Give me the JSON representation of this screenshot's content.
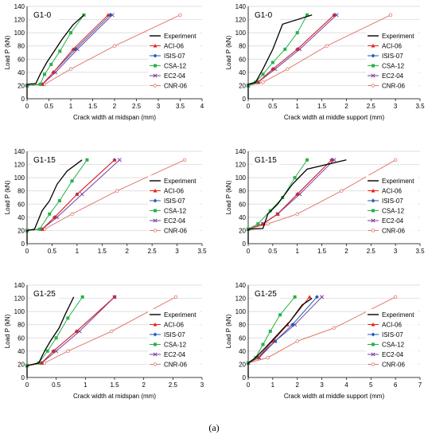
{
  "caption": "(a)",
  "colors": {
    "Experiment": "#000000",
    "ACI-06": "#e8211c",
    "ISIS-07": "#1f5fb4",
    "CSA-12": "#27b24a",
    "EC2-04": "#7b3fa0",
    "CNR-06": "#e07a6e"
  },
  "legend_order": [
    "Experiment",
    "ACI-06",
    "ISIS-07",
    "CSA-12",
    "EC2-04",
    "CNR-06"
  ],
  "chart_data": [
    {
      "type": "line",
      "title": "G1-0",
      "xlabel": "Crack width at midspan (mm)",
      "ylabel": "Load P (kN)",
      "xlim": [
        0,
        4
      ],
      "ylim": [
        0,
        140
      ],
      "xticks": [
        0,
        0.5,
        1,
        1.5,
        2,
        2.5,
        3,
        3.5,
        4
      ],
      "yticks": [
        0,
        20,
        40,
        60,
        80,
        100,
        120,
        140
      ],
      "legend": "top-right",
      "series": [
        {
          "name": "Experiment",
          "x": [
            0,
            0,
            0.2,
            0.3,
            0.45,
            0.6,
            0.8,
            1.05,
            1.3
          ],
          "y": [
            0,
            22,
            23,
            37,
            55,
            70,
            90,
            112,
            127
          ]
        },
        {
          "name": "ACI-06",
          "x": [
            0,
            0,
            0.35,
            0.6,
            1.05,
            1.85
          ],
          "y": [
            0,
            20,
            22,
            40,
            75,
            127
          ]
        },
        {
          "name": "ISIS-07",
          "x": [
            0,
            0,
            0.35,
            0.6,
            1.1,
            1.9
          ],
          "y": [
            0,
            20,
            22,
            40,
            75,
            127
          ]
        },
        {
          "name": "CSA-12",
          "x": [
            0,
            0,
            0.3,
            0.4,
            0.55,
            0.75,
            1.0,
            1.3
          ],
          "y": [
            0,
            20,
            22,
            37,
            52,
            72,
            100,
            127
          ]
        },
        {
          "name": "EC2-04",
          "x": [
            0,
            0,
            0.35,
            0.65,
            1.15,
            1.95
          ],
          "y": [
            0,
            20,
            22,
            40,
            75,
            127
          ]
        },
        {
          "name": "CNR-06",
          "x": [
            0,
            0,
            0.4,
            1.0,
            2.0,
            3.5
          ],
          "y": [
            0,
            20,
            22,
            45,
            80,
            127
          ]
        }
      ]
    },
    {
      "type": "line",
      "title": "G1-0",
      "xlabel": "Crack width at middle support (mm)",
      "ylabel": "Load P (kN)",
      "xlim": [
        0,
        3.5
      ],
      "ylim": [
        0,
        140
      ],
      "xticks": [
        0,
        0.5,
        1,
        1.5,
        2,
        2.5,
        3,
        3.5
      ],
      "yticks": [
        0,
        20,
        40,
        60,
        80,
        100,
        120,
        140
      ],
      "legend": "top-right",
      "series": [
        {
          "name": "Experiment",
          "x": [
            0,
            0,
            0.15,
            0.3,
            0.5,
            0.7,
            1.3
          ],
          "y": [
            0,
            22,
            25,
            45,
            75,
            113,
            127
          ]
        },
        {
          "name": "ACI-06",
          "x": [
            0,
            0,
            0.2,
            0.5,
            1.0,
            1.75
          ],
          "y": [
            0,
            20,
            25,
            45,
            75,
            127
          ]
        },
        {
          "name": "ISIS-07",
          "x": [
            0,
            0,
            0.2,
            0.5,
            1.0,
            1.75
          ],
          "y": [
            0,
            20,
            25,
            45,
            75,
            127
          ]
        },
        {
          "name": "CSA-12",
          "x": [
            0,
            0,
            0.15,
            0.3,
            0.5,
            0.75,
            1.0,
            1.2
          ],
          "y": [
            0,
            20,
            25,
            37,
            55,
            75,
            100,
            127
          ]
        },
        {
          "name": "EC2-04",
          "x": [
            0,
            0,
            0.2,
            0.55,
            1.05,
            1.8
          ],
          "y": [
            0,
            20,
            25,
            45,
            75,
            127
          ]
        },
        {
          "name": "CNR-06",
          "x": [
            0,
            0,
            0.3,
            0.8,
            1.6,
            2.9
          ],
          "y": [
            0,
            20,
            25,
            45,
            80,
            127
          ]
        }
      ]
    },
    {
      "type": "line",
      "title": "G1-15",
      "xlabel": "",
      "ylabel": "Load P (kN)",
      "xlim": [
        0,
        3.5
      ],
      "ylim": [
        0,
        140
      ],
      "xticks": [
        0,
        0.5,
        1,
        1.5,
        2,
        2.5,
        3,
        3.5
      ],
      "yticks": [
        0,
        20,
        40,
        60,
        80,
        100,
        120,
        140
      ],
      "legend": "top-right",
      "series": [
        {
          "name": "Experiment",
          "x": [
            0,
            0,
            0.15,
            0.3,
            0.45,
            0.6,
            0.8,
            1.1
          ],
          "y": [
            0,
            20,
            22,
            50,
            65,
            90,
            110,
            127
          ]
        },
        {
          "name": "ACI-06",
          "x": [
            0,
            0,
            0.3,
            0.55,
            1.0,
            1.75
          ],
          "y": [
            0,
            20,
            22,
            40,
            75,
            127
          ]
        },
        {
          "name": "ISIS-07",
          "x": [
            0,
            0,
            0.3,
            0.55,
            1.0,
            1.75
          ],
          "y": [
            0,
            20,
            22,
            40,
            75,
            127
          ]
        },
        {
          "name": "CSA-12",
          "x": [
            0,
            0,
            0.25,
            0.45,
            0.65,
            0.9,
            1.2
          ],
          "y": [
            0,
            20,
            22,
            45,
            65,
            95,
            127
          ]
        },
        {
          "name": "EC2-04",
          "x": [
            0,
            0,
            0.3,
            0.6,
            1.1,
            1.85
          ],
          "y": [
            0,
            20,
            22,
            40,
            75,
            127
          ]
        },
        {
          "name": "CNR-06",
          "x": [
            0,
            0,
            0.35,
            0.9,
            1.8,
            3.15
          ],
          "y": [
            0,
            20,
            22,
            45,
            80,
            127
          ]
        }
      ]
    },
    {
      "type": "line",
      "title": "G1-15",
      "xlabel": "",
      "ylabel": "Load P (kN)",
      "xlim": [
        0,
        3.5
      ],
      "ylim": [
        0,
        140
      ],
      "xticks": [
        0,
        0.5,
        1,
        1.5,
        2,
        2.5,
        3,
        3.5
      ],
      "yticks": [
        0,
        20,
        40,
        60,
        80,
        100,
        120,
        140
      ],
      "legend": "top-right",
      "series": [
        {
          "name": "Experiment",
          "x": [
            0,
            0,
            0.3,
            0.4,
            0.6,
            0.9,
            1.2,
            2.0
          ],
          "y": [
            0,
            22,
            23,
            45,
            60,
            90,
            113,
            127
          ]
        },
        {
          "name": "ACI-06",
          "x": [
            0,
            0,
            0.3,
            0.6,
            1.0,
            1.7
          ],
          "y": [
            0,
            22,
            30,
            45,
            75,
            127
          ]
        },
        {
          "name": "ISIS-07",
          "x": [
            0,
            0,
            0.3,
            0.6,
            1.0,
            1.7
          ],
          "y": [
            0,
            22,
            30,
            45,
            75,
            127
          ]
        },
        {
          "name": "CSA-12",
          "x": [
            0,
            0,
            0.2,
            0.45,
            0.7,
            0.95,
            1.2
          ],
          "y": [
            0,
            22,
            30,
            50,
            70,
            100,
            127
          ]
        },
        {
          "name": "EC2-04",
          "x": [
            0,
            0,
            0.3,
            0.6,
            1.05,
            1.75
          ],
          "y": [
            0,
            22,
            30,
            45,
            75,
            127
          ]
        },
        {
          "name": "CNR-06",
          "x": [
            0,
            0,
            0.4,
            1.0,
            1.9,
            3.0
          ],
          "y": [
            0,
            22,
            30,
            45,
            80,
            127
          ]
        }
      ]
    },
    {
      "type": "line",
      "title": "G1-25",
      "xlabel": "Crack width at midspan (mm)",
      "ylabel": "Load P (kN)",
      "xlim": [
        0,
        3
      ],
      "ylim": [
        0,
        140
      ],
      "xticks": [
        0,
        0.5,
        1,
        1.5,
        2,
        2.5,
        3
      ],
      "yticks": [
        0,
        20,
        40,
        60,
        80,
        100,
        120,
        140
      ],
      "legend": "top-right",
      "series": [
        {
          "name": "Experiment",
          "x": [
            0,
            0,
            0.2,
            0.3,
            0.4,
            0.55,
            0.65,
            0.8
          ],
          "y": [
            0,
            18,
            22,
            40,
            55,
            75,
            95,
            122
          ]
        },
        {
          "name": "ACI-06",
          "x": [
            0,
            0,
            0.25,
            0.45,
            0.85,
            1.5
          ],
          "y": [
            0,
            18,
            22,
            40,
            70,
            122
          ]
        },
        {
          "name": "ISIS-07",
          "x": [
            0,
            0,
            0.25,
            0.45,
            0.85,
            1.5
          ],
          "y": [
            0,
            18,
            22,
            40,
            70,
            122
          ]
        },
        {
          "name": "CSA-12",
          "x": [
            0,
            0,
            0.2,
            0.35,
            0.5,
            0.7,
            0.95
          ],
          "y": [
            0,
            18,
            22,
            40,
            60,
            90,
            122
          ]
        },
        {
          "name": "EC2-04",
          "x": [
            0,
            0,
            0.25,
            0.5,
            0.9,
            1.5
          ],
          "y": [
            0,
            18,
            22,
            40,
            70,
            122
          ]
        },
        {
          "name": "CNR-06",
          "x": [
            0,
            0,
            0.3,
            0.7,
            1.45,
            2.55
          ],
          "y": [
            0,
            18,
            22,
            40,
            70,
            122
          ]
        }
      ]
    },
    {
      "type": "line",
      "title": "G1-25",
      "xlabel": "Crack width at middle support (mm)",
      "ylabel": "Load P (kN)",
      "xlim": [
        0,
        7
      ],
      "ylim": [
        0,
        140
      ],
      "xticks": [
        0,
        1,
        2,
        3,
        4,
        5,
        6,
        7
      ],
      "yticks": [
        0,
        20,
        40,
        60,
        80,
        100,
        120,
        140
      ],
      "legend": "top-right",
      "series": [
        {
          "name": "Experiment",
          "x": [
            0,
            0,
            0.3,
            0.7,
            1.2,
            1.7,
            2.2,
            2.6
          ],
          "y": [
            0,
            22,
            30,
            45,
            65,
            85,
            110,
            120
          ]
        },
        {
          "name": "ACI-06",
          "x": [
            0,
            0,
            0.4,
            1.0,
            1.6,
            2.5
          ],
          "y": [
            0,
            22,
            30,
            55,
            80,
            122
          ]
        },
        {
          "name": "ISIS-07",
          "x": [
            0,
            0,
            0.4,
            1.1,
            1.8,
            2.8
          ],
          "y": [
            0,
            22,
            30,
            55,
            80,
            122
          ]
        },
        {
          "name": "CSA-12",
          "x": [
            0,
            0,
            0.3,
            0.6,
            0.9,
            1.3,
            1.9
          ],
          "y": [
            0,
            22,
            30,
            50,
            70,
            95,
            122
          ]
        },
        {
          "name": "EC2-04",
          "x": [
            0,
            0,
            0.45,
            1.1,
            1.9,
            3.0
          ],
          "y": [
            0,
            22,
            30,
            55,
            80,
            122
          ]
        },
        {
          "name": "CNR-06",
          "x": [
            0,
            0,
            0.8,
            2.0,
            3.5,
            6.0
          ],
          "y": [
            0,
            22,
            30,
            55,
            75,
            122
          ]
        }
      ]
    }
  ]
}
